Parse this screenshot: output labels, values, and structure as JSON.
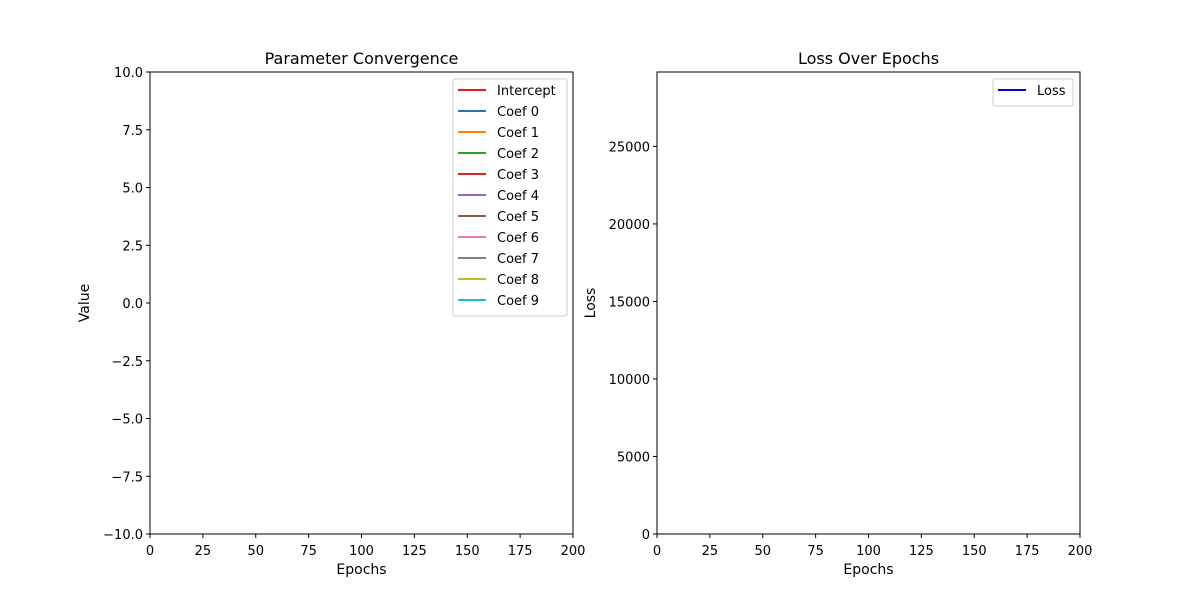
{
  "chart_data": [
    {
      "type": "line",
      "title": "Parameter Convergence",
      "xlabel": "Epochs",
      "ylabel": "Value",
      "xlim": [
        0,
        200
      ],
      "ylim": [
        -10,
        10
      ],
      "xticks": [
        0,
        25,
        50,
        75,
        100,
        125,
        150,
        175,
        200
      ],
      "xtick_labels": [
        "0",
        "25",
        "50",
        "75",
        "100",
        "125",
        "150",
        "175",
        "200"
      ],
      "yticks": [
        -10,
        -7.5,
        -5,
        -2.5,
        0,
        2.5,
        5,
        7.5,
        10
      ],
      "ytick_labels": [
        "−10.0",
        "−7.5",
        "−5.0",
        "−2.5",
        "0.0",
        "2.5",
        "5.0",
        "7.5",
        "10.0"
      ],
      "grid": false,
      "legend_position": "top-right",
      "series": [
        {
          "name": "Intercept",
          "color": "#e41a1c",
          "x": [],
          "values": []
        },
        {
          "name": "Coef 0",
          "color": "#1f77b4",
          "x": [],
          "values": []
        },
        {
          "name": "Coef 1",
          "color": "#ff7f0e",
          "x": [],
          "values": []
        },
        {
          "name": "Coef 2",
          "color": "#2ca02c",
          "x": [],
          "values": []
        },
        {
          "name": "Coef 3",
          "color": "#d62728",
          "x": [],
          "values": []
        },
        {
          "name": "Coef 4",
          "color": "#9467bd",
          "x": [],
          "values": []
        },
        {
          "name": "Coef 5",
          "color": "#8c564b",
          "x": [],
          "values": []
        },
        {
          "name": "Coef 6",
          "color": "#e377c2",
          "x": [],
          "values": []
        },
        {
          "name": "Coef 7",
          "color": "#7f7f7f",
          "x": [],
          "values": []
        },
        {
          "name": "Coef 8",
          "color": "#bcbd22",
          "x": [],
          "values": []
        },
        {
          "name": "Coef 9",
          "color": "#17becf",
          "x": [],
          "values": []
        }
      ]
    },
    {
      "type": "line",
      "title": "Loss Over Epochs",
      "xlabel": "Epochs",
      "ylabel": "Loss",
      "xlim": [
        0,
        200
      ],
      "ylim": [
        0,
        29800
      ],
      "xticks": [
        0,
        25,
        50,
        75,
        100,
        125,
        150,
        175,
        200
      ],
      "xtick_labels": [
        "0",
        "25",
        "50",
        "75",
        "100",
        "125",
        "150",
        "175",
        "200"
      ],
      "yticks": [
        0,
        5000,
        10000,
        15000,
        20000,
        25000
      ],
      "ytick_labels": [
        "0",
        "5000",
        "10000",
        "15000",
        "20000",
        "25000"
      ],
      "grid": false,
      "legend_position": "top-right",
      "series": [
        {
          "name": "Loss",
          "color": "#0000cc",
          "x": [],
          "values": []
        }
      ]
    }
  ]
}
